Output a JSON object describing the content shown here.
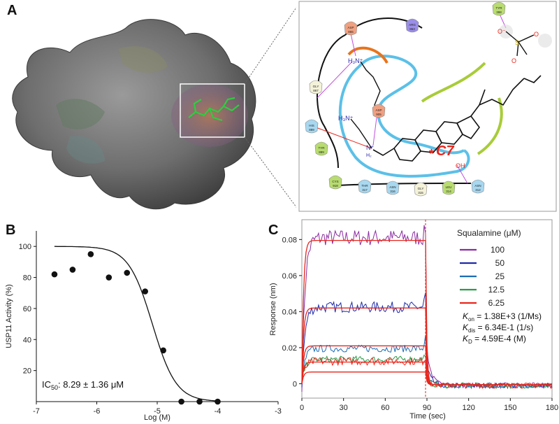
{
  "panels": {
    "a": "A",
    "b": "B",
    "c": "C"
  },
  "colors": {
    "surface": "#6e6e6e",
    "ligand": "#2ecc40",
    "pocket": "#a06a4a",
    "ligplot_border": "#999999",
    "curve": "#111111",
    "fit": "#e8261c",
    "c7": "#e8261c"
  },
  "ligplot": {
    "residues": [
      {
        "name": "ASP",
        "num": "865",
        "color": "#f0a080"
      },
      {
        "name": "ARG",
        "num": "863",
        "color": "#9a8ee8"
      },
      {
        "name": "TYR",
        "num": "398",
        "color": "#b8dc70"
      },
      {
        "name": "GLY",
        "num": "867",
        "color": "#f4f2d8"
      },
      {
        "name": "HIS",
        "num": "889",
        "color": "#a8d8f0"
      },
      {
        "name": "TYR",
        "num": "889",
        "color": "#b8dc70"
      },
      {
        "name": "ASP",
        "num": "905",
        "color": "#f0a080"
      },
      {
        "name": "CYS",
        "num": "918",
        "color": "#b8dc70"
      },
      {
        "name": "THR",
        "num": "317",
        "color": "#a8d8f0"
      },
      {
        "name": "ASN",
        "num": "316",
        "color": "#a8d8f0"
      },
      {
        "name": "GLY",
        "num": "315",
        "color": "#f4f2d8"
      },
      {
        "name": "LEU",
        "num": "314",
        "color": "#b8dc70"
      },
      {
        "name": "ASN",
        "num": "312",
        "color": "#a8d8f0"
      }
    ],
    "labels": {
      "nh3a": "H₃N⁺",
      "nh3b": "H₃N⁺",
      "nh2": "N⁺",
      "nh2sub": "H₂",
      "oh": "OH",
      "c7": "C7",
      "star": "*",
      "o1": "O⁻",
      "o2": "O",
      "o3": "O",
      "s": "S"
    }
  },
  "chart_data": [
    {
      "type": "scatter",
      "xlabel": "Log (M)",
      "ylabel": "USP11 Activity (%)",
      "xlim": [
        -7,
        -3
      ],
      "ylim": [
        0,
        110
      ],
      "xticks": [
        -7,
        -6,
        -5,
        -4,
        -3
      ],
      "xtick_labels": [
        "-7",
        "-6",
        "-5",
        "-4",
        "-3"
      ],
      "yticks": [
        20,
        40,
        60,
        80,
        100
      ],
      "ytick_labels": [
        "20",
        "40",
        "60",
        "80",
        "100"
      ],
      "points": [
        {
          "x": -6.7,
          "y": 82
        },
        {
          "x": -6.4,
          "y": 85
        },
        {
          "x": -6.1,
          "y": 95
        },
        {
          "x": -5.8,
          "y": 80
        },
        {
          "x": -5.5,
          "y": 83
        },
        {
          "x": -5.2,
          "y": 71
        },
        {
          "x": -4.9,
          "y": 33
        },
        {
          "x": -4.6,
          "y": 0
        },
        {
          "x": -4.3,
          "y": 0
        },
        {
          "x": -4.0,
          "y": 0
        }
      ],
      "fit": {
        "top": 100,
        "bottom": 0,
        "log_ic50": -5.08,
        "hill": 2.2,
        "x_range": [
          -6.7,
          -4.0
        ]
      },
      "annotation": {
        "prefix": "IC",
        "sub": "50",
        "text": ": 8.29 ± 1.36 μM"
      }
    },
    {
      "type": "line",
      "xlabel": "Time (sec)",
      "ylabel": "Response (nm)",
      "xlim": [
        0,
        180
      ],
      "ylim": [
        -0.008,
        0.091
      ],
      "xticks": [
        0,
        30,
        60,
        90,
        120,
        150,
        180
      ],
      "xtick_labels": [
        "0",
        "30",
        "60",
        "90",
        "120",
        "150",
        "180"
      ],
      "yticks": [
        0,
        0.02,
        0.04,
        0.06,
        0.08
      ],
      "ytick_labels": [
        "0",
        "0.02",
        "0.04",
        "0.06",
        "0.08"
      ],
      "dissociation_start": 89,
      "legend_title": "Squalamine (μM)",
      "legend_position": "top-right",
      "series": [
        {
          "name": "100",
          "color": "#8a2ca0",
          "plateau": 0.081,
          "fit_plateau": 0.0795,
          "noise": 0.0045,
          "spike": 0.005
        },
        {
          "name": "50",
          "color": "#1f2aa8",
          "plateau": 0.0425,
          "fit_plateau": 0.042,
          "noise": 0.003,
          "spike": 0.007
        },
        {
          "name": "25",
          "color": "#1b6cb5",
          "plateau": 0.0195,
          "fit_plateau": 0.021,
          "noise": 0.002,
          "spike": 0.006
        },
        {
          "name": "12.5",
          "color": "#2a9a48",
          "plateau": 0.0135,
          "fit_plateau": 0.012,
          "noise": 0.0018,
          "spike": 0.003
        },
        {
          "name": "6.25",
          "color": "#e8261c",
          "plateau": 0.0125,
          "fit_plateau": 0.0065,
          "noise": 0.0022,
          "spike": 0.002
        }
      ],
      "kinetics": [
        {
          "symbol": "K",
          "sub": "on",
          "text": " = 1.38E+3 (1/Ms)"
        },
        {
          "symbol": "K",
          "sub": "dis",
          "text": " = 6.34E-1 (1/s)"
        },
        {
          "symbol": "K",
          "sub": "D",
          "text": " = 4.59E-4 (M)"
        }
      ]
    }
  ]
}
